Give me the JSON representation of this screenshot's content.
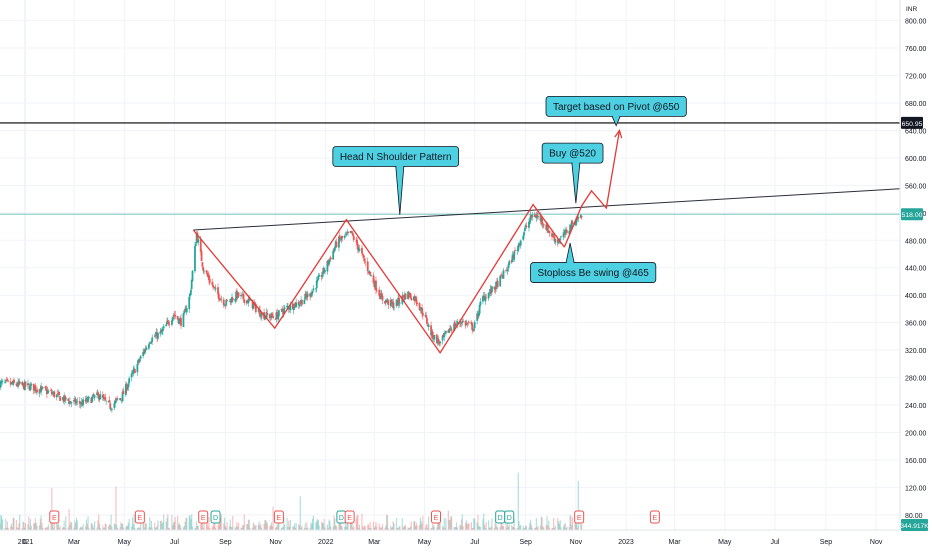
{
  "chart_data": {
    "type": "candlestick",
    "currency_label": "INR",
    "ylim": [
      58,
      830
    ],
    "y_ticks": [
      80,
      120,
      160,
      200,
      240,
      280,
      320,
      360,
      400,
      440,
      480,
      520,
      560,
      600,
      640,
      680,
      720,
      760,
      800
    ],
    "y_tick_labels": [
      "80.00",
      "120.00",
      "160.00",
      "200.00",
      "240.00",
      "280.00",
      "320.00",
      "360.00",
      "400.00",
      "440.00",
      "480.00",
      "520.00",
      "560.00",
      "600.00",
      "640.00",
      "680.00",
      "720.00",
      "760.00",
      "800.00"
    ],
    "x_range": [
      "2020-12-01",
      "2023-11-30"
    ],
    "x_ticks": [
      {
        "date": "2020-12-31",
        "label": "0"
      },
      {
        "date": "2021-01-01",
        "label": "2021"
      },
      {
        "date": "2021-03-01",
        "label": "Mar"
      },
      {
        "date": "2021-05-01",
        "label": "May"
      },
      {
        "date": "2021-07-01",
        "label": "Jul"
      },
      {
        "date": "2021-09-01",
        "label": "Sep"
      },
      {
        "date": "2021-11-01",
        "label": "Nov"
      },
      {
        "date": "2022-01-01",
        "label": "2022"
      },
      {
        "date": "2022-03-01",
        "label": "Mar"
      },
      {
        "date": "2022-05-01",
        "label": "May"
      },
      {
        "date": "2022-07-01",
        "label": "Jul"
      },
      {
        "date": "2022-09-01",
        "label": "Sep"
      },
      {
        "date": "2022-11-01",
        "label": "Nov"
      },
      {
        "date": "2023-01-01",
        "label": "2023"
      },
      {
        "date": "2023-03-01",
        "label": "Mar"
      },
      {
        "date": "2023-05-01",
        "label": "May"
      },
      {
        "date": "2023-07-01",
        "label": "Jul"
      },
      {
        "date": "2023-09-01",
        "label": "Sep"
      },
      {
        "date": "2023-11-01",
        "label": "Nov"
      }
    ],
    "price_path": [
      {
        "date": "2020-12-01",
        "value": 272
      },
      {
        "date": "2020-12-20",
        "value": 270
      },
      {
        "date": "2021-01-10",
        "value": 266
      },
      {
        "date": "2021-01-31",
        "value": 258
      },
      {
        "date": "2021-02-21",
        "value": 246
      },
      {
        "date": "2021-03-10",
        "value": 242
      },
      {
        "date": "2021-03-31",
        "value": 254
      },
      {
        "date": "2021-04-14",
        "value": 238
      },
      {
        "date": "2021-04-28",
        "value": 252
      },
      {
        "date": "2021-05-14",
        "value": 292
      },
      {
        "date": "2021-06-01",
        "value": 335
      },
      {
        "date": "2021-06-15",
        "value": 345
      },
      {
        "date": "2021-06-30",
        "value": 372
      },
      {
        "date": "2021-07-10",
        "value": 360
      },
      {
        "date": "2021-07-20",
        "value": 400
      },
      {
        "date": "2021-07-28",
        "value": 490
      },
      {
        "date": "2021-08-05",
        "value": 440
      },
      {
        "date": "2021-08-20",
        "value": 405
      },
      {
        "date": "2021-09-01",
        "value": 388
      },
      {
        "date": "2021-09-15",
        "value": 400
      },
      {
        "date": "2021-10-01",
        "value": 390
      },
      {
        "date": "2021-10-15",
        "value": 372
      },
      {
        "date": "2021-10-31",
        "value": 368
      },
      {
        "date": "2021-11-15",
        "value": 382
      },
      {
        "date": "2021-12-01",
        "value": 390
      },
      {
        "date": "2021-12-15",
        "value": 405
      },
      {
        "date": "2022-01-01",
        "value": 440
      },
      {
        "date": "2022-01-15",
        "value": 478
      },
      {
        "date": "2022-02-01",
        "value": 490
      },
      {
        "date": "2022-02-10",
        "value": 468
      },
      {
        "date": "2022-02-25",
        "value": 428
      },
      {
        "date": "2022-03-10",
        "value": 395
      },
      {
        "date": "2022-03-25",
        "value": 385
      },
      {
        "date": "2022-04-10",
        "value": 402
      },
      {
        "date": "2022-04-20",
        "value": 395
      },
      {
        "date": "2022-05-01",
        "value": 370
      },
      {
        "date": "2022-05-10",
        "value": 342
      },
      {
        "date": "2022-05-20",
        "value": 330
      },
      {
        "date": "2022-06-01",
        "value": 352
      },
      {
        "date": "2022-06-15",
        "value": 362
      },
      {
        "date": "2022-06-30",
        "value": 352
      },
      {
        "date": "2022-07-10",
        "value": 395
      },
      {
        "date": "2022-07-25",
        "value": 410
      },
      {
        "date": "2022-08-10",
        "value": 440
      },
      {
        "date": "2022-08-22",
        "value": 470
      },
      {
        "date": "2022-09-01",
        "value": 498
      },
      {
        "date": "2022-09-10",
        "value": 518
      },
      {
        "date": "2022-09-20",
        "value": 510
      },
      {
        "date": "2022-10-01",
        "value": 490
      },
      {
        "date": "2022-10-10",
        "value": 478
      },
      {
        "date": "2022-10-18",
        "value": 488
      },
      {
        "date": "2022-10-25",
        "value": 500
      },
      {
        "date": "2022-11-01",
        "value": 510
      },
      {
        "date": "2022-11-08",
        "value": 516
      }
    ],
    "head_and_shoulders_pivots": [
      {
        "date": "2021-07-24",
        "value": 495
      },
      {
        "date": "2021-10-31",
        "value": 352
      },
      {
        "date": "2022-01-26",
        "value": 510
      },
      {
        "date": "2022-05-20",
        "value": 316
      },
      {
        "date": "2022-09-10",
        "value": 532
      },
      {
        "date": "2022-10-18",
        "value": 470
      }
    ],
    "neckline": {
      "start": {
        "date": "2021-07-24",
        "value": 495
      },
      "end": {
        "date": "2023-11-30",
        "value": 555
      }
    },
    "horizontal_lines": [
      {
        "value": 650.95,
        "label": "650.95",
        "color": "#000000"
      },
      {
        "value": 518.0,
        "label": "518.00",
        "color": "#26a69a"
      }
    ],
    "projection_path": [
      {
        "date": "2022-10-18",
        "value": 470
      },
      {
        "date": "2022-11-08",
        "value": 530
      },
      {
        "date": "2022-11-20",
        "value": 552
      },
      {
        "date": "2022-12-08",
        "value": 527
      },
      {
        "date": "2022-12-24",
        "value": 640
      }
    ],
    "annotations": [
      {
        "text": "Head N Shoulder Pattern",
        "date": "2022-03-27",
        "value": 602,
        "pointer": {
          "date": "2022-04-01",
          "value": 517
        }
      },
      {
        "text": "Buy @520",
        "date": "2022-10-28",
        "value": 607,
        "pointer": {
          "date": "2022-11-01",
          "value": 534
        }
      },
      {
        "text": "Target based on Pivot @650",
        "date": "2022-12-20",
        "value": 675,
        "pointer": {
          "date": "2022-12-20",
          "value": 647
        }
      },
      {
        "text": "Stoploss Be swing @465",
        "date": "2022-11-22",
        "value": 433,
        "pointer": {
          "date": "2022-10-25",
          "value": 476
        }
      }
    ],
    "volume_label": "344.917K",
    "earnings_markers": [
      {
        "date": "2021-02-05",
        "type": "E"
      },
      {
        "date": "2021-05-20",
        "type": "E"
      },
      {
        "date": "2021-08-05",
        "type": "E"
      },
      {
        "date": "2021-08-20",
        "type": "D"
      },
      {
        "date": "2021-11-05",
        "type": "E"
      },
      {
        "date": "2022-01-20",
        "type": "D"
      },
      {
        "date": "2022-01-30",
        "type": "E"
      },
      {
        "date": "2022-05-15",
        "type": "E"
      },
      {
        "date": "2022-08-01",
        "type": "D"
      },
      {
        "date": "2022-08-12",
        "type": "D"
      },
      {
        "date": "2022-11-05",
        "type": "E"
      },
      {
        "date": "2023-02-05",
        "type": "E"
      }
    ],
    "colors": {
      "up": "#26a69a",
      "down": "#ef5350",
      "pattern": "#e53935",
      "neckline": "#2a2e39",
      "callout_fill": "#4dd0e1",
      "callout_stroke": "#131722",
      "axis_text": "#131722",
      "grid": "#f0f3fa"
    }
  }
}
